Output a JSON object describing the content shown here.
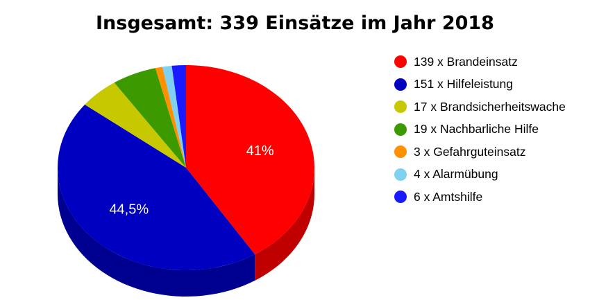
{
  "chart_data": {
    "type": "pie",
    "title": "Insgesamt: 339 Einsätze im Jahr 2018",
    "slices": [
      {
        "legend": "139 x Brandeinsatz",
        "value": 139,
        "color": "#ff0000",
        "side": "#c00000",
        "label": "41%"
      },
      {
        "legend": "151 x Hilfeleistung",
        "value": 151,
        "color": "#0000c0",
        "side": "#000090",
        "label": "44,5%"
      },
      {
        "legend": "17 x Brandsicherheitswache",
        "value": 17,
        "color": "#c8c800",
        "side": "#969600",
        "label": ""
      },
      {
        "legend": "19 x Nachbarliche Hilfe",
        "value": 19,
        "color": "#3c9a00",
        "side": "#2a6e00",
        "label": ""
      },
      {
        "legend": "3 x Gefahrguteinsatz",
        "value": 3,
        "color": "#ff9000",
        "side": "#c06c00",
        "label": ""
      },
      {
        "legend": "4 x Alarmübung",
        "value": 4,
        "color": "#80d0f0",
        "side": "#5ea0b8",
        "label": ""
      },
      {
        "legend": "6 x Amtshilfe",
        "value": 6,
        "color": "#1a1aff",
        "side": "#1010b8",
        "label": ""
      }
    ],
    "legend_position": "right"
  }
}
